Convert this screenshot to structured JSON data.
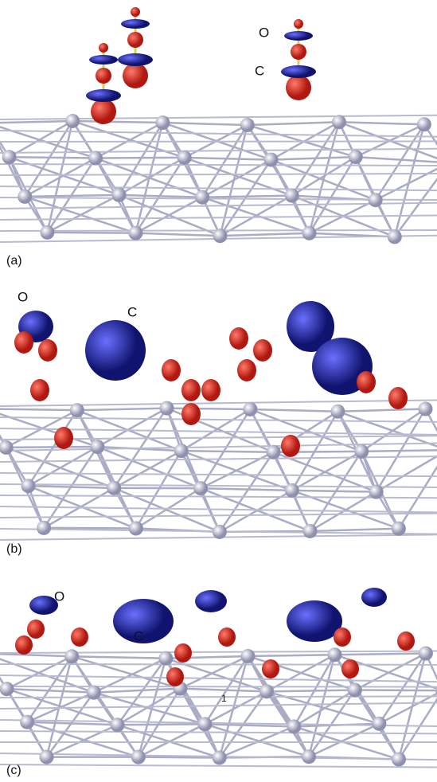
{
  "panels": [
    {
      "label": "(a)",
      "annotations": [
        "O",
        "C"
      ]
    },
    {
      "label": "(b)",
      "annotations": [
        "O",
        "C"
      ]
    },
    {
      "label": "(c)",
      "annotations": [
        "O",
        "C",
        "1"
      ]
    }
  ]
}
